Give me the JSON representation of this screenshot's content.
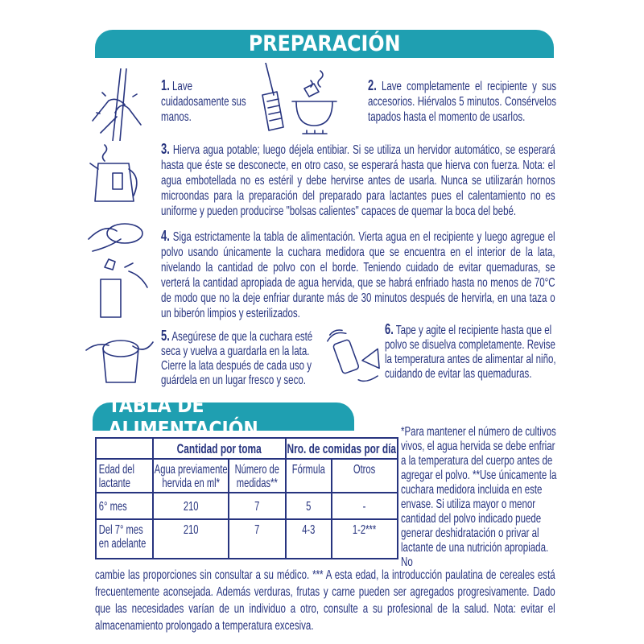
{
  "preparation": {
    "title": "PREPARACIÓN",
    "steps": [
      {
        "number": "1.",
        "text": "Lave cuidadosamente sus manos."
      },
      {
        "number": "2.",
        "text": "Lave completamente el recipiente y sus accesorios. Hiérvalos 5 minutos. Consérvelos tapados hasta el momento de usarlos."
      },
      {
        "number": "3.",
        "text": "Hierva agua potable; luego déjela entibiar. Si se utiliza un hervidor automático, se esperará hasta que éste se desconecte, en otro caso, se esperará hasta que hierva con fuerza. Nota: el agua embotellada no es estéril y debe hervirse antes de usarla. Nunca se utilizarán hornos microondas para la preparación del preparado para lactantes pues el calentamiento no es uniforme y pueden producirse \"bolsas calientes\" capaces de quemar la boca del bebé."
      },
      {
        "number": "4.",
        "text": "Siga estrictamente la tabla de alimentación. Vierta agua en el recipiente y luego agregue el polvo usando únicamente la cuchara medidora que se encuentra en el interior de la lata, nivelando la cantidad de polvo con el borde. Teniendo cuidado de evitar quemaduras, se verterá la cantidad apropiada de agua hervida, que se habrá enfriado hasta no menos de 70°C de modo que no la deje enfriar durante más de 30 minutos después de hervirla, en una taza o un biberón limpios y esterilizados."
      },
      {
        "number": "5.",
        "text": "Asegúrese de que la cuchara esté seca y vuelva a guardarla en la lata. Cierre la lata después de cada uso y guárdela en un lugar fresco y seco."
      },
      {
        "number": "6.",
        "text": "Tape y agite el recipiente hasta que el polvo se disuelva completamente. Revise la temperatura antes de alimentar al niño, cuidando de evitar las quemaduras."
      }
    ]
  },
  "feeding_table": {
    "title": "TABLA DE ALIMENTACIÓN",
    "group_headers": [
      "Cantidad por toma",
      "Nro. de comidas por día"
    ],
    "columns": [
      "Edad del lactante",
      "Agua previamente hervida en ml*",
      "Número de medidas**",
      "Fórmula",
      "Otros"
    ],
    "rows": [
      [
        "6° mes",
        "210",
        "7",
        "5",
        "-"
      ],
      [
        "Del 7° mes en adelante",
        "210",
        "7",
        "4-3",
        "1-2***"
      ]
    ]
  },
  "footnote_side": "*Para mantener el número de cultivos vivos, el agua hervida se debe enfriar a la temperatura del cuerpo antes de agregar el polvo. **Use únicamente la cuchara medidora incluida en este envase. Si utiliza mayor o menor cantidad del polvo indicado puede generar deshidratación o privar al lactante de una nutrición apropiada. No",
  "footnote_bottom": "cambie las proporciones sin consultar a su médico. *** A esta edad, la introducción paulatina de cereales está frecuentemente aconsejada. Además verduras, frutas y carne pueden ser agregados progresivamente. Dado que las necesidades varían de un individuo a otro, consulte a su profesional de la salud. Nota: evitar el almacenamiento prolongado a temperatura excesiva.",
  "colors": {
    "banner": "#1f9fb1",
    "text": "#27347f"
  }
}
